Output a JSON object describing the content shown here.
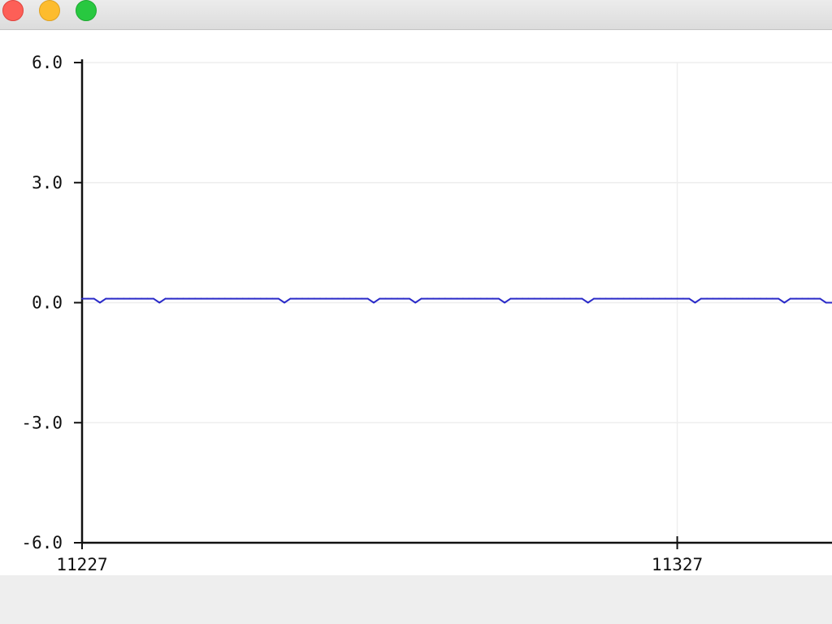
{
  "window": {
    "controls": {
      "close": "close-icon",
      "minimize": "minimize-icon",
      "zoom": "zoom-icon"
    }
  },
  "chart_data": {
    "type": "line",
    "grid": true,
    "ylim": [
      -6.0,
      6.0
    ],
    "yticks": [
      "6.0",
      "3.0",
      "0.0",
      "-3.0",
      "-6.0"
    ],
    "xlim": [
      11227,
      11353
    ],
    "xticks": [
      "11227",
      "11327"
    ],
    "series": [
      {
        "color": "#2a2ac8",
        "x_start": 11227,
        "y": [
          0.1,
          0.1,
          0.1,
          0.0,
          0.1,
          0.1,
          0.1,
          0.1,
          0.1,
          0.1,
          0.1,
          0.1,
          0.1,
          0.0,
          0.1,
          0.1,
          0.1,
          0.1,
          0.1,
          0.1,
          0.1,
          0.1,
          0.1,
          0.1,
          0.1,
          0.1,
          0.1,
          0.1,
          0.1,
          0.1,
          0.1,
          0.1,
          0.1,
          0.1,
          0.0,
          0.1,
          0.1,
          0.1,
          0.1,
          0.1,
          0.1,
          0.1,
          0.1,
          0.1,
          0.1,
          0.1,
          0.1,
          0.1,
          0.1,
          0.0,
          0.1,
          0.1,
          0.1,
          0.1,
          0.1,
          0.1,
          0.0,
          0.1,
          0.1,
          0.1,
          0.1,
          0.1,
          0.1,
          0.1,
          0.1,
          0.1,
          0.1,
          0.1,
          0.1,
          0.1,
          0.1,
          0.0,
          0.1,
          0.1,
          0.1,
          0.1,
          0.1,
          0.1,
          0.1,
          0.1,
          0.1,
          0.1,
          0.1,
          0.1,
          0.1,
          0.0,
          0.1,
          0.1,
          0.1,
          0.1,
          0.1,
          0.1,
          0.1,
          0.1,
          0.1,
          0.1,
          0.1,
          0.1,
          0.1,
          0.1,
          0.1,
          0.1,
          0.1,
          0.0,
          0.1,
          0.1,
          0.1,
          0.1,
          0.1,
          0.1,
          0.1,
          0.1,
          0.1,
          0.1,
          0.1,
          0.1,
          0.1,
          0.1,
          0.0,
          0.1,
          0.1,
          0.1,
          0.1,
          0.1,
          0.1,
          0.0,
          0.0
        ]
      }
    ]
  }
}
